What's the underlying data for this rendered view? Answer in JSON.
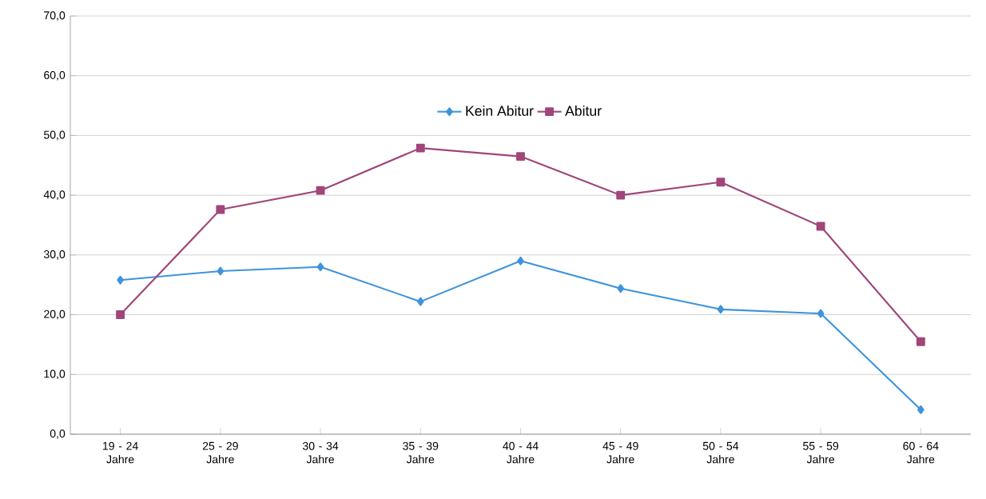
{
  "chart_data": {
    "type": "line",
    "categories": [
      "19 - 24 Jahre",
      "25 - 29 Jahre",
      "30 - 34 Jahre",
      "35 - 39 Jahre",
      "40 - 44 Jahre",
      "45 - 49 Jahre",
      "50 - 54 Jahre",
      "55 - 59 Jahre",
      "60 - 64 Jahre"
    ],
    "series": [
      {
        "name": "Kein Abitur",
        "color": "#3d94dc",
        "marker": "diamond",
        "values": [
          25.8,
          27.3,
          28.0,
          22.2,
          29.0,
          24.4,
          20.9,
          20.2,
          4.1
        ]
      },
      {
        "name": "Abitur",
        "color": "#a0467a",
        "marker": "square",
        "values": [
          20.0,
          37.6,
          40.8,
          47.9,
          46.5,
          40.0,
          42.2,
          34.8,
          15.5
        ]
      }
    ],
    "ylim": [
      0,
      70
    ],
    "yticks": [
      {
        "value": 0,
        "label": "0,0"
      },
      {
        "value": 10,
        "label": "10,0"
      },
      {
        "value": 20,
        "label": "20,0"
      },
      {
        "value": 30,
        "label": "30,0"
      },
      {
        "value": 40,
        "label": "40,0"
      },
      {
        "value": 50,
        "label": "50,0"
      },
      {
        "value": 60,
        "label": "60,0"
      },
      {
        "value": 70,
        "label": "70,0"
      }
    ],
    "grid": "y",
    "legend": "top",
    "line_style": "solid"
  }
}
